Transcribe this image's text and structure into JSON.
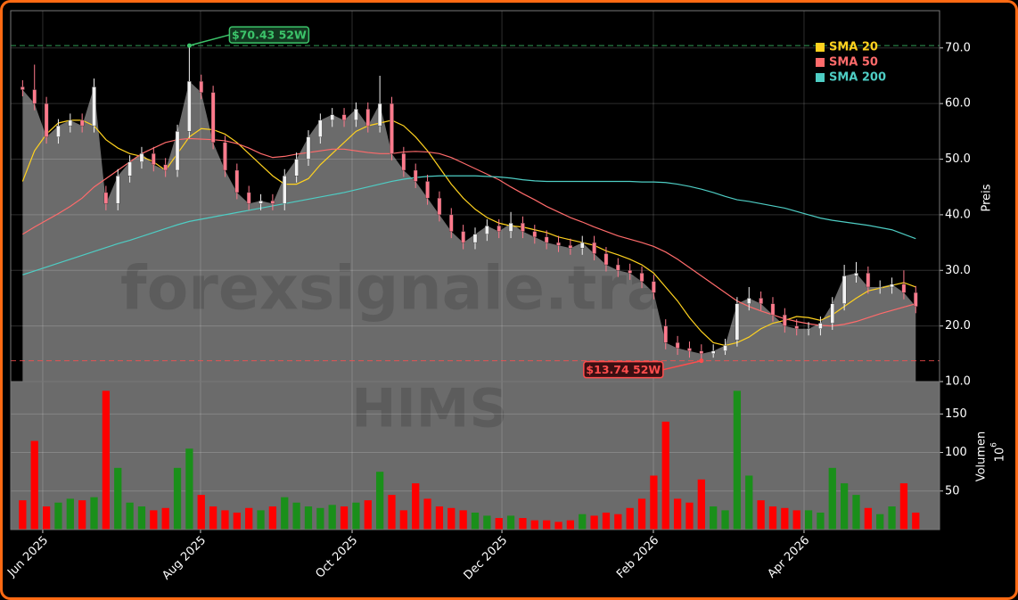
{
  "chart_data": [
    {
      "type": "candlestick",
      "ylabel": "Preis",
      "xlim": [
        -1,
        77
      ],
      "ylim": [
        10,
        76.7
      ],
      "yticks": [
        {
          "value": 10,
          "label": "10.0"
        },
        {
          "value": 20,
          "label": "20.0"
        },
        {
          "value": 30,
          "label": "30.0"
        },
        {
          "value": 40,
          "label": "40.0"
        },
        {
          "value": 50,
          "label": "50.0"
        },
        {
          "value": 60,
          "label": "60.0"
        },
        {
          "value": 70,
          "label": "70.0"
        }
      ],
      "grid": true,
      "area_color": "#6b6b6b",
      "candle_colors": {
        "up": "#f2f2f2",
        "down": "#ff7a8c"
      },
      "open": [
        63,
        62.5,
        60,
        54,
        56,
        57,
        56,
        44,
        42,
        47,
        49.5,
        51,
        49,
        48,
        55,
        64,
        62,
        53,
        48,
        44,
        42,
        42.5,
        42,
        47,
        50,
        54,
        57,
        58,
        57,
        59,
        56,
        60,
        51,
        48,
        46,
        43,
        40,
        37,
        35,
        36.5,
        38,
        37,
        38.5,
        37,
        36,
        35,
        34.5,
        34,
        35,
        33,
        31,
        30,
        29.5,
        28,
        20,
        17,
        16,
        15.5,
        15,
        15.5,
        17.5,
        24,
        25,
        24,
        22,
        20,
        19.5,
        19.5,
        20.5,
        24,
        29,
        29.5,
        27,
        27,
        27.5,
        26
      ],
      "high": [
        64.2,
        67,
        61.2,
        57.2,
        58.2,
        58.2,
        64.5,
        45.2,
        48.2,
        50.7,
        52.2,
        52.2,
        50.2,
        56.2,
        70.43,
        65.2,
        63.2,
        54.2,
        49.2,
        45.2,
        43.7,
        43.7,
        48.2,
        51.2,
        55.2,
        58.2,
        59.2,
        59.2,
        60.2,
        60.2,
        65,
        61.2,
        52.2,
        49.2,
        47.2,
        44.2,
        41.2,
        38.2,
        37.7,
        39.2,
        39.2,
        40.5,
        39.7,
        38.2,
        37.2,
        36.2,
        35.7,
        36.2,
        36.2,
        34.2,
        32.2,
        31.2,
        30.7,
        29.2,
        21.2,
        18.2,
        17.2,
        16.7,
        16.7,
        17.7,
        25.2,
        27,
        26.2,
        25.2,
        23.2,
        21.2,
        20.7,
        21.7,
        25.2,
        31,
        31.5,
        30.7,
        28.2,
        28.7,
        30,
        27.2
      ],
      "low": [
        61.3,
        58.8,
        52.8,
        52.8,
        54.8,
        54.8,
        54.8,
        40.8,
        40.8,
        45.8,
        48.3,
        47.8,
        46.8,
        46.8,
        53.8,
        60.8,
        51.8,
        46.8,
        42.8,
        40.8,
        40.8,
        40.8,
        40.8,
        45.8,
        48.8,
        52.8,
        55.8,
        55.8,
        55.8,
        54.8,
        54.8,
        49.8,
        46.8,
        44.8,
        41.8,
        38.8,
        35.8,
        33.8,
        33.8,
        35.3,
        35.8,
        35.8,
        35.8,
        34.8,
        33.8,
        33.3,
        32.8,
        32.8,
        31.8,
        29.8,
        28.8,
        28.3,
        26.8,
        24.8,
        15.8,
        14.8,
        14.3,
        13.74,
        14.3,
        14.8,
        16.3,
        22.8,
        22.8,
        20.8,
        18.8,
        18.3,
        18.3,
        18.3,
        19.3,
        22.8,
        27.8,
        25.8,
        25.8,
        25.8,
        24.8,
        22.3
      ],
      "close": [
        62.5,
        60,
        54,
        56,
        57,
        56,
        63,
        42,
        47,
        49.5,
        51,
        49,
        48,
        55,
        64,
        62,
        53,
        48,
        44,
        42,
        42.5,
        42,
        47,
        50,
        54,
        57,
        58,
        57,
        59,
        56,
        60,
        51,
        48,
        46,
        43,
        40,
        37,
        35,
        36.5,
        38,
        37,
        38.5,
        37,
        36,
        35,
        34.5,
        34,
        35,
        33,
        31,
        30,
        29.5,
        28,
        26,
        17,
        16,
        15.5,
        15,
        15.5,
        16.5,
        24,
        25,
        24,
        22,
        20,
        19.5,
        19.5,
        20.5,
        24,
        29,
        29.5,
        27,
        27,
        27.5,
        26,
        23.5
      ],
      "series": [
        {
          "name": "SMA 20",
          "color": "#ffd21f",
          "values": [
            46,
            51.5,
            54.5,
            56.5,
            57,
            57,
            56,
            53.5,
            52,
            51,
            50.5,
            49.5,
            48,
            51,
            54,
            55.5,
            55.3,
            54.5,
            53,
            51,
            49,
            47,
            45.5,
            45.5,
            46.5,
            49,
            51,
            53,
            55,
            56,
            56.5,
            57,
            56,
            54,
            51.5,
            48.5,
            45.5,
            43,
            41,
            39.5,
            38.5,
            38,
            37.8,
            37.3,
            36.8,
            36,
            35.5,
            35,
            34.5,
            33.5,
            32.8,
            32,
            31,
            29.5,
            27,
            24.5,
            21.5,
            19,
            17,
            16.5,
            17,
            18,
            19.5,
            20.5,
            21,
            21.7,
            21.5,
            21,
            22,
            23.5,
            25,
            26.3,
            26.8,
            27.3,
            27.8,
            27
          ]
        },
        {
          "name": "SMA 50",
          "color": "#ff6b6b",
          "values": [
            36.5,
            37.8,
            39,
            40.2,
            41.5,
            43,
            45,
            46.5,
            48,
            49.5,
            51,
            52,
            53,
            53.5,
            53.7,
            53.6,
            53.5,
            53.3,
            52.8,
            52,
            51,
            50.3,
            50.5,
            50.9,
            51.2,
            51.5,
            51.8,
            51.8,
            51.5,
            51.2,
            51,
            51,
            51.3,
            51.4,
            51.3,
            51,
            50.3,
            49.3,
            48.3,
            47.3,
            46.3,
            45,
            43.8,
            42.7,
            41.5,
            40.5,
            39.5,
            38.7,
            37.8,
            37,
            36.2,
            35.6,
            35,
            34.3,
            33.3,
            32,
            30.5,
            29,
            27.5,
            26,
            24.5,
            23.5,
            22.7,
            22,
            21.3,
            20.8,
            20.4,
            20.1,
            20,
            20.3,
            20.8,
            21.5,
            22.2,
            22.8,
            23.4,
            24
          ]
        },
        {
          "name": "SMA 200",
          "color": "#4ecdc4",
          "values": [
            29.2,
            29.9,
            30.6,
            31.3,
            32,
            32.7,
            33.4,
            34.1,
            34.8,
            35.4,
            36.1,
            36.8,
            37.5,
            38.2,
            38.8,
            39.2,
            39.6,
            40,
            40.4,
            40.8,
            41.2,
            41.6,
            42,
            42.4,
            42.8,
            43.2,
            43.6,
            44,
            44.5,
            45,
            45.5,
            46,
            46.4,
            46.7,
            46.9,
            47,
            47,
            47,
            47,
            46.9,
            46.8,
            46.6,
            46.3,
            46.1,
            46,
            46,
            46,
            46,
            46,
            46,
            46,
            46,
            45.9,
            45.9,
            45.8,
            45.5,
            45.1,
            44.6,
            44,
            43.3,
            42.7,
            42.4,
            42,
            41.6,
            41.2,
            40.6,
            40,
            39.4,
            39,
            38.7,
            38.4,
            38.1,
            37.7,
            37.3,
            36.5,
            35.7
          ]
        }
      ],
      "legend": "upper right",
      "annotations": [
        {
          "text": "$70.43 52W",
          "value": 70.43,
          "kind": "high",
          "color": "#3cc46a"
        },
        {
          "text": "$13.74 52W",
          "value": 13.74,
          "kind": "low",
          "color": "#ff4d4d"
        }
      ],
      "watermark": "forexsignale.tra"
    },
    {
      "type": "bar",
      "ylabel": "Volumen",
      "multiplier_base": "10",
      "multiplier_exponent": "6",
      "xlim": [
        -1,
        77
      ],
      "ylim": [
        0,
        192
      ],
      "yticks": [
        50,
        100,
        150
      ],
      "grid": true,
      "colors": {
        "up": "#1a8f1a",
        "down": "#ff0000"
      },
      "background": "#6b6b6b",
      "values": [
        38,
        115,
        30,
        35,
        40,
        38,
        42,
        180,
        80,
        35,
        30,
        25,
        28,
        80,
        105,
        45,
        30,
        25,
        22,
        28,
        25,
        30,
        42,
        35,
        30,
        28,
        32,
        30,
        35,
        38,
        75,
        45,
        25,
        60,
        40,
        30,
        28,
        25,
        22,
        18,
        15,
        18,
        15,
        12,
        12,
        10,
        12,
        20,
        18,
        22,
        20,
        28,
        40,
        70,
        140,
        40,
        35,
        65,
        30,
        25,
        180,
        70,
        38,
        30,
        28,
        25,
        25,
        22,
        80,
        60,
        45,
        28,
        20,
        30,
        60,
        22
      ],
      "xticks": [
        {
          "value": 1.69,
          "label": "Jun 2025"
        },
        {
          "value": 14.94,
          "label": "Aug 2025"
        },
        {
          "value": 27.67,
          "label": "Oct 2025"
        },
        {
          "value": 40.25,
          "label": "Dec 2025"
        },
        {
          "value": 52.97,
          "label": "Feb 2026"
        },
        {
          "value": 65.62,
          "label": "Apr 2026"
        }
      ],
      "watermark": "HIMS"
    }
  ]
}
